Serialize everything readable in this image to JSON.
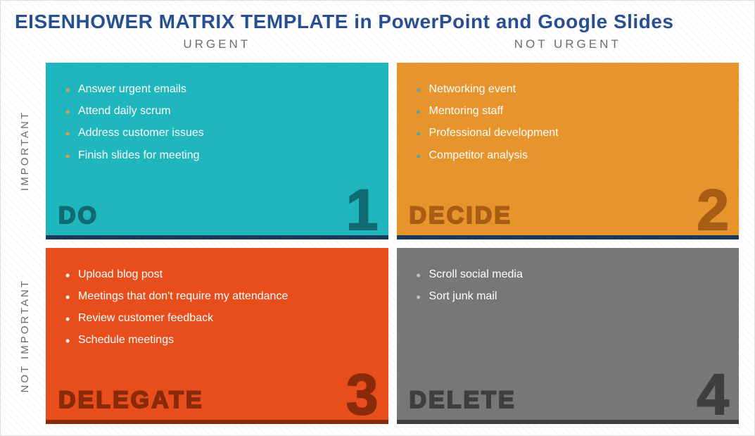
{
  "title": "EISENHOWER MATRIX TEMPLATE in PowerPoint and Google Slides",
  "title_color": "#285090",
  "columns": {
    "urgent": "URGENT",
    "not_urgent": "NOT URGENT"
  },
  "rows": {
    "important": "IMPORTANT",
    "not_important": "NOT IMPORTANT"
  },
  "quadrants": [
    {
      "id": "do",
      "label": "DO",
      "number": "1",
      "bg_color": "#20b6be",
      "accent_color": "#106a72",
      "label_color": "#106a72",
      "number_color": "#106a72",
      "bullet_color": "#e6984a",
      "underline_color": "#1a3a5c",
      "items": [
        "Answer urgent emails",
        "Attend daily scrum",
        "Address customer issues",
        "Finish slides for meeting"
      ]
    },
    {
      "id": "decide",
      "label": "DECIDE",
      "number": "2",
      "bg_color": "#e7942c",
      "accent_color": "#a85d14",
      "label_color": "#a85d14",
      "number_color": "#a85d14",
      "bullet_color": "#4aa8b0",
      "underline_color": "#1a3a5c",
      "items": [
        "Networking event",
        "Mentoring staff",
        "Professional development",
        "Competitor analysis"
      ]
    },
    {
      "id": "delegate",
      "label": "DELEGATE",
      "number": "3",
      "bg_color": "#e84e1c",
      "accent_color": "#8a2a0a",
      "label_color": "#8a2a0a",
      "number_color": "#8a2a0a",
      "bullet_color": "#ffffff",
      "underline_color": "#8a2a0a",
      "items": [
        "Upload blog post",
        "Meetings that don't require my attendance",
        "Review customer feedback",
        "Schedule meetings"
      ]
    },
    {
      "id": "delete",
      "label": "DELETE",
      "number": "4",
      "bg_color": "#777777",
      "accent_color": "#3e3e3e",
      "label_color": "#3e3e3e",
      "number_color": "#3e3e3e",
      "bullet_color": "#bdbdbd",
      "underline_color": "#3e3e3e",
      "items": [
        "Scroll social media",
        "Sort junk mail"
      ]
    }
  ]
}
